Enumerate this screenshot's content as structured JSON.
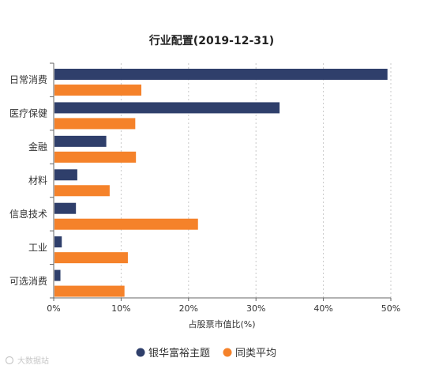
{
  "chart_data": {
    "type": "bar",
    "orientation": "horizontal",
    "title": "行业配置(2019-12-31)",
    "xlabel": "占股票市值比(%)",
    "ylabel": "",
    "categories": [
      "日常消费",
      "医疗保健",
      "金融",
      "材料",
      "信息技术",
      "工业",
      "可选消费"
    ],
    "series": [
      {
        "name": "银华富裕主题",
        "color": "#2f3f6b",
        "values": [
          49.5,
          33.5,
          7.8,
          3.5,
          3.3,
          1.2,
          1.0
        ]
      },
      {
        "name": "同类平均",
        "color": "#f5822a",
        "values": [
          13.0,
          12.1,
          12.2,
          8.3,
          21.4,
          11.0,
          10.5
        ]
      }
    ],
    "xlim": [
      0,
      50
    ],
    "xticks": [
      0,
      10,
      20,
      30,
      40,
      50
    ],
    "xtick_labels": [
      "0%",
      "10%",
      "20%",
      "30%",
      "40%",
      "50%"
    ],
    "grid": "vertical-dashed",
    "legend_position": "bottom"
  },
  "watermark": {
    "text": "大数据站"
  }
}
